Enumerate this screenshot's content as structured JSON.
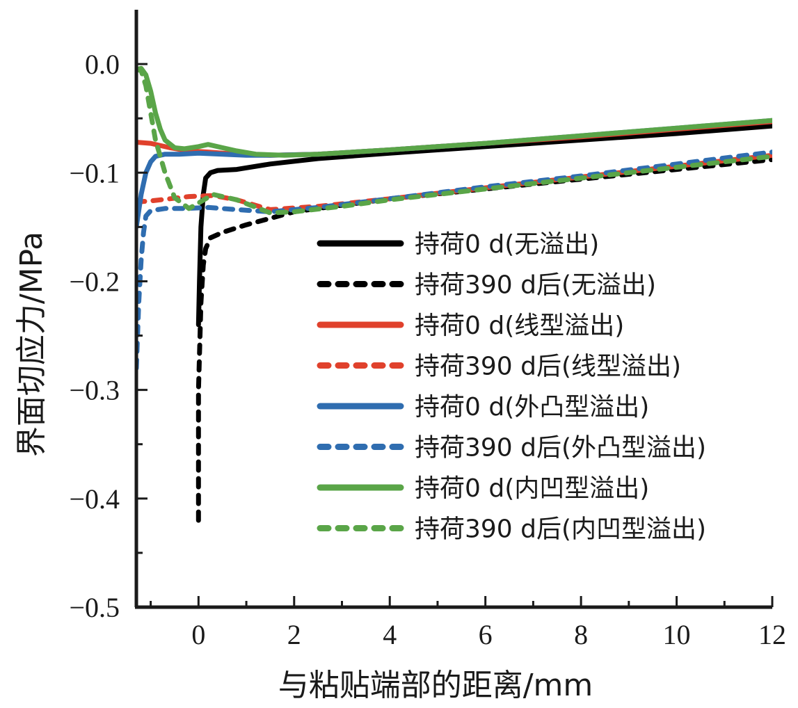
{
  "chart_data": {
    "type": "line",
    "title": "",
    "xlabel": "与粘贴端部的距离/mm",
    "ylabel": "界面切应力/MPa",
    "xlim": [
      -1.3,
      12
    ],
    "ylim": [
      -0.5,
      0.05
    ],
    "xticks": [
      0,
      2,
      4,
      6,
      8,
      10,
      12
    ],
    "xtick_labels": [
      "0",
      "2",
      "4",
      "6",
      "8",
      "10",
      "12"
    ],
    "yticks": [
      0.0,
      -0.1,
      -0.2,
      -0.3,
      -0.4,
      -0.5
    ],
    "ytick_labels": [
      "0.0",
      "−0.1",
      "−0.2",
      "−0.3",
      "−0.4",
      "−0.5"
    ],
    "grid": false,
    "legend_position": "center-right",
    "series": [
      {
        "name": "持荷0 d(无溢出)",
        "color": "#000000",
        "dash": "solid",
        "x": [
          0.0,
          0.02,
          0.05,
          0.1,
          0.15,
          0.25,
          0.4,
          0.8,
          1.5,
          2.5,
          4,
          6,
          8,
          10,
          12
        ],
        "y": [
          -0.24,
          -0.2,
          -0.15,
          -0.12,
          -0.105,
          -0.1,
          -0.098,
          -0.097,
          -0.092,
          -0.087,
          -0.082,
          -0.076,
          -0.07,
          -0.064,
          -0.057
        ]
      },
      {
        "name": "持荷390 d后(无溢出)",
        "color": "#000000",
        "dash": "dashed",
        "x": [
          0.0,
          0.0,
          0.05,
          0.1,
          0.15,
          0.25,
          0.5,
          1.0,
          1.5,
          2.0,
          3,
          4,
          6,
          8,
          10,
          12
        ],
        "y": [
          -0.42,
          -0.3,
          -0.22,
          -0.185,
          -0.17,
          -0.16,
          -0.155,
          -0.148,
          -0.142,
          -0.136,
          -0.13,
          -0.124,
          -0.115,
          -0.106,
          -0.097,
          -0.088
        ]
      },
      {
        "name": "持荷0 d(线型溢出)",
        "color": "#e0412c",
        "dash": "solid",
        "x": [
          -1.3,
          -1.0,
          -0.6,
          -0.2,
          0.2,
          0.8,
          1.5,
          2.5,
          4,
          6,
          8,
          10,
          12
        ],
        "y": [
          -0.072,
          -0.073,
          -0.077,
          -0.08,
          -0.081,
          -0.083,
          -0.084,
          -0.083,
          -0.079,
          -0.073,
          -0.067,
          -0.06,
          -0.053
        ]
      },
      {
        "name": "持荷390 d后(线型溢出)",
        "color": "#e0412c",
        "dash": "dashed",
        "x": [
          -1.3,
          -1.0,
          -0.6,
          -0.2,
          0.3,
          0.8,
          1.5,
          2.5,
          4,
          6,
          8,
          10,
          12
        ],
        "y": [
          -0.127,
          -0.126,
          -0.124,
          -0.122,
          -0.121,
          -0.125,
          -0.134,
          -0.131,
          -0.124,
          -0.114,
          -0.104,
          -0.094,
          -0.084
        ]
      },
      {
        "name": "持荷0 d(外凸型溢出)",
        "color": "#2f6db0",
        "dash": "solid",
        "x": [
          -1.3,
          -1.2,
          -1.1,
          -1.0,
          -0.9,
          -0.7,
          -0.4,
          0.0,
          0.5,
          1.0,
          1.5,
          2.5,
          4,
          6,
          8,
          10,
          12
        ],
        "y": [
          -0.15,
          -0.12,
          -0.1,
          -0.09,
          -0.085,
          -0.083,
          -0.083,
          -0.082,
          -0.083,
          -0.084,
          -0.084,
          -0.083,
          -0.079,
          -0.073,
          -0.066,
          -0.059,
          -0.052
        ]
      },
      {
        "name": "持荷390 d后(外凸型溢出)",
        "color": "#2f6db0",
        "dash": "dashed",
        "x": [
          -1.3,
          -1.25,
          -1.2,
          -1.15,
          -1.1,
          -1.0,
          -0.7,
          -0.3,
          0.2,
          0.8,
          1.5,
          2.5,
          4,
          6,
          8,
          10,
          12
        ],
        "y": [
          -0.28,
          -0.22,
          -0.18,
          -0.155,
          -0.14,
          -0.135,
          -0.133,
          -0.133,
          -0.132,
          -0.134,
          -0.136,
          -0.132,
          -0.124,
          -0.113,
          -0.103,
          -0.092,
          -0.081
        ]
      },
      {
        "name": "持荷0 d(内凹型溢出)",
        "color": "#5aa548",
        "dash": "solid",
        "x": [
          -1.3,
          -1.2,
          -1.1,
          -1.0,
          -0.9,
          -0.8,
          -0.7,
          -0.5,
          -0.3,
          0.0,
          0.2,
          0.5,
          0.8,
          1.2,
          1.8,
          2.5,
          4,
          6,
          8,
          10,
          12
        ],
        "y": [
          -0.005,
          -0.004,
          -0.01,
          -0.025,
          -0.045,
          -0.06,
          -0.07,
          -0.077,
          -0.078,
          -0.076,
          -0.074,
          -0.077,
          -0.08,
          -0.083,
          -0.084,
          -0.083,
          -0.079,
          -0.073,
          -0.066,
          -0.059,
          -0.052
        ]
      },
      {
        "name": "持荷390 d后(内凹型溢出)",
        "color": "#5aa548",
        "dash": "dashed",
        "x": [
          -1.3,
          -1.2,
          -1.1,
          -1.0,
          -0.9,
          -0.8,
          -0.7,
          -0.5,
          -0.2,
          0.0,
          0.3,
          0.8,
          1.5,
          2.0,
          3,
          4,
          6,
          8,
          10,
          12
        ],
        "y": [
          -0.005,
          -0.006,
          -0.02,
          -0.045,
          -0.07,
          -0.085,
          -0.1,
          -0.123,
          -0.133,
          -0.128,
          -0.12,
          -0.125,
          -0.137,
          -0.136,
          -0.131,
          -0.125,
          -0.115,
          -0.105,
          -0.095,
          -0.085
        ]
      }
    ]
  }
}
